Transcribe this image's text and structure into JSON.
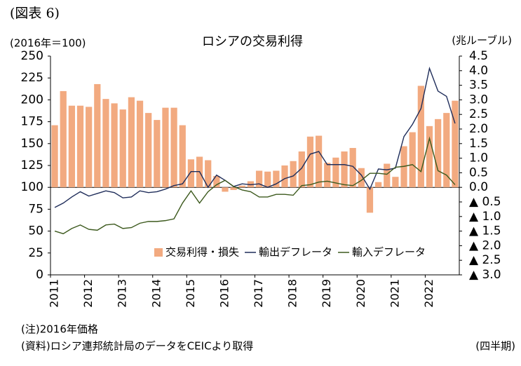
{
  "header": {
    "label": "(図表 6)"
  },
  "chart_data": {
    "type": "bar-line",
    "title": "ロシアの交易利得",
    "y_label": "(2016年＝100)",
    "y2_label": "(兆ルーブル)",
    "categories": [
      "2011",
      null,
      null,
      null,
      "2012",
      null,
      null,
      null,
      "2013",
      null,
      null,
      null,
      "2014",
      null,
      null,
      null,
      "2015",
      null,
      null,
      null,
      "2016",
      null,
      null,
      null,
      "2017",
      null,
      null,
      null,
      "2018",
      null,
      null,
      null,
      "2019",
      null,
      null,
      null,
      "2020",
      null,
      null,
      null,
      "2021",
      null,
      null,
      null,
      "2022",
      null,
      null,
      null
    ],
    "series": [
      {
        "name": "交易利得・損失",
        "type": "bar",
        "axis": "y2",
        "color": "#f2aa80",
        "values": [
          2.13,
          3.3,
          2.8,
          2.8,
          2.76,
          3.54,
          3.03,
          2.88,
          2.67,
          3.09,
          2.97,
          2.55,
          2.31,
          2.73,
          2.73,
          2.13,
          0.96,
          1.05,
          0.93,
          0.39,
          -0.15,
          -0.09,
          0.06,
          0.21,
          0.57,
          0.54,
          0.57,
          0.75,
          0.9,
          1.23,
          1.74,
          1.77,
          0.84,
          1.02,
          1.23,
          1.35,
          0.66,
          -0.87,
          0.18,
          0.81,
          0.36,
          1.41,
          1.89,
          3.48,
          2.1,
          2.34,
          2.55,
          2.97
        ]
      },
      {
        "name": "輸出デフレータ",
        "type": "line",
        "color": "#1f2d5a",
        "values": [
          77,
          82,
          89,
          95,
          90,
          93,
          96,
          94,
          88,
          89,
          96,
          94,
          95,
          98,
          102,
          104,
          118,
          118,
          100,
          114,
          108,
          101,
          104,
          103,
          104,
          100,
          104,
          110,
          113,
          122,
          138,
          141,
          126,
          126,
          126,
          124,
          114,
          98,
          121,
          120,
          122,
          158,
          172,
          190,
          236,
          210,
          204,
          173
        ]
      },
      {
        "name": "輸入デフレータ",
        "type": "line",
        "color": "#3d5a1e",
        "values": [
          50,
          47,
          53,
          57,
          52,
          51,
          57,
          58,
          53,
          54,
          59,
          61,
          61,
          62,
          64,
          82,
          96,
          82,
          95,
          103,
          108,
          101,
          97,
          95,
          89,
          89,
          92,
          92,
          91,
          102,
          103,
          106,
          107,
          105,
          103,
          102,
          108,
          116,
          116,
          115,
          123,
          124,
          126,
          118,
          156,
          119,
          114,
          103
        ]
      }
    ],
    "ylim": [
      0,
      250
    ],
    "yticks": [
      0,
      25,
      50,
      75,
      100,
      125,
      150,
      175,
      200,
      225,
      250
    ],
    "y2lim": [
      -3,
      4.5
    ],
    "y2ticks": [
      {
        "value": -3,
        "label": "▲ 3.0"
      },
      {
        "value": -2.5,
        "label": "▲ 2.5"
      },
      {
        "value": -2,
        "label": "▲ 2.0"
      },
      {
        "value": -1.5,
        "label": "▲ 1.5"
      },
      {
        "value": -1,
        "label": "▲ 1.0"
      },
      {
        "value": -0.5,
        "label": "▲ 0.5"
      },
      {
        "value": 0,
        "label": "0.0"
      },
      0.5,
      {
        "value": 1,
        "label": "1.0"
      },
      1.5,
      {
        "value": 2,
        "label": "2.0"
      },
      2.5,
      {
        "value": 3,
        "label": "3.0"
      },
      3.5,
      {
        "value": 4,
        "label": "4.0"
      },
      4.5
    ],
    "grid": false,
    "legend": "bottom"
  },
  "footer": {
    "note": "(注)2016年価格",
    "source": "(資料)ロシア連邦統計局のデータをCEICより取得",
    "unit": "(四半期)"
  }
}
